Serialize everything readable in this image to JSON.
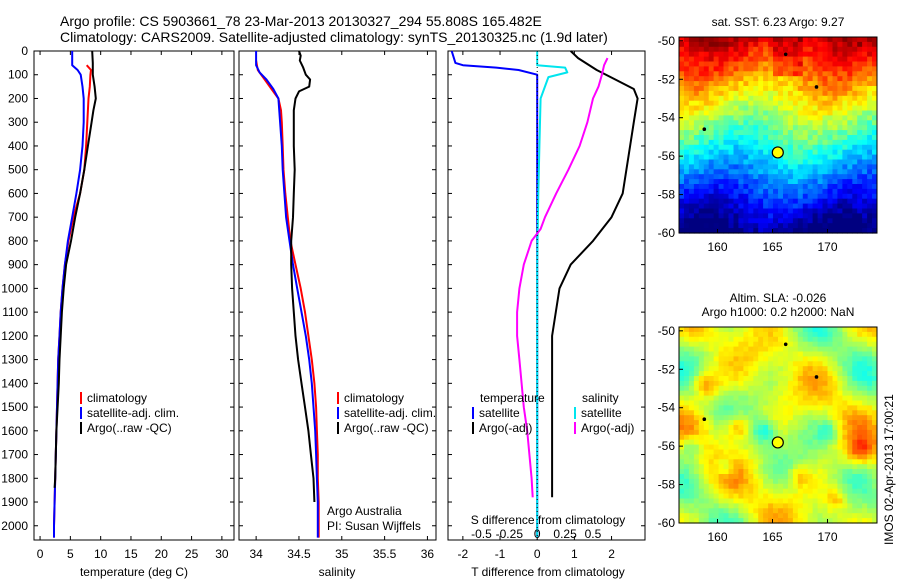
{
  "header": {
    "line1": "Argo profile: CS 5903661_78 23-Mar-2013 20130327_294 55.808S 165.482E",
    "line2": "Climatology: CARS2009. Satellite-adjusted climatology: synTS_20130325.nc (1.9d later)"
  },
  "colors": {
    "climatology": "#ff0000",
    "satellite": "#0000ff",
    "argo": "#000000",
    "salinity_satellite": "#00e5ee",
    "salinity_argo": "#ff00ff"
  },
  "depth_ticks": [
    0,
    100,
    200,
    300,
    400,
    500,
    600,
    700,
    800,
    900,
    1000,
    1100,
    1200,
    1300,
    1400,
    1500,
    1600,
    1700,
    1800,
    1900,
    2000
  ],
  "chart_data": [
    {
      "type": "line",
      "name": "temperature-profile",
      "xlabel": "temperature (deg C)",
      "xlim": [
        -1,
        32
      ],
      "ylim": [
        2060,
        0
      ],
      "xticks": [
        0,
        5,
        10,
        15,
        20,
        25,
        30
      ],
      "legend": {
        "placement": "bottom-center",
        "entries": [
          "climatology",
          "satellite-adj. clim.",
          "Argo(..raw -QC)"
        ]
      },
      "series": [
        {
          "name": "climatology",
          "color_key": "climatology",
          "points": [
            [
              7.7,
              60
            ],
            [
              8.4,
              80
            ],
            [
              8.3,
              100
            ],
            [
              8.2,
              150
            ],
            [
              8.0,
              200
            ],
            [
              7.8,
              300
            ],
            [
              7.6,
              400
            ],
            [
              7.3,
              500
            ],
            [
              6.6,
              600
            ],
            [
              5.5,
              700
            ],
            [
              4.7,
              800
            ],
            [
              4.1,
              900
            ],
            [
              3.7,
              1000
            ],
            [
              3.4,
              1100
            ],
            [
              3.2,
              1200
            ],
            [
              3.0,
              1300
            ],
            [
              2.9,
              1400
            ],
            [
              2.8,
              1500
            ],
            [
              2.7,
              1600
            ],
            [
              2.6,
              1700
            ],
            [
              2.5,
              1800
            ],
            [
              2.4,
              1900
            ],
            [
              2.3,
              2000
            ],
            [
              2.3,
              2050
            ]
          ]
        },
        {
          "name": "satellite-adj. clim.",
          "color_key": "satellite",
          "points": [
            [
              5.3,
              0
            ],
            [
              5.3,
              60
            ],
            [
              6.2,
              80
            ],
            [
              6.7,
              100
            ],
            [
              7.0,
              150
            ],
            [
              7.2,
              200
            ],
            [
              7.2,
              300
            ],
            [
              7.0,
              400
            ],
            [
              6.6,
              500
            ],
            [
              6.0,
              600
            ],
            [
              5.3,
              700
            ],
            [
              4.6,
              800
            ],
            [
              4.1,
              900
            ],
            [
              3.7,
              1000
            ],
            [
              3.4,
              1100
            ],
            [
              3.2,
              1200
            ],
            [
              3.0,
              1300
            ],
            [
              2.9,
              1400
            ],
            [
              2.8,
              1500
            ],
            [
              2.7,
              1600
            ],
            [
              2.6,
              1700
            ],
            [
              2.5,
              1800
            ],
            [
              2.4,
              1900
            ],
            [
              2.3,
              2000
            ],
            [
              2.3,
              2050
            ]
          ]
        },
        {
          "name": "Argo(..raw -QC)",
          "color_key": "argo",
          "points": [
            [
              8.6,
              0
            ],
            [
              8.7,
              50
            ],
            [
              8.7,
              100
            ],
            [
              9.0,
              150
            ],
            [
              9.2,
              200
            ],
            [
              8.8,
              250
            ],
            [
              8.5,
              300
            ],
            [
              7.9,
              400
            ],
            [
              7.3,
              500
            ],
            [
              6.6,
              600
            ],
            [
              5.8,
              700
            ],
            [
              5.1,
              800
            ],
            [
              4.3,
              900
            ],
            [
              3.9,
              1000
            ],
            [
              3.6,
              1100
            ],
            [
              3.4,
              1200
            ],
            [
              3.2,
              1300
            ],
            [
              3.1,
              1400
            ],
            [
              2.9,
              1500
            ],
            [
              2.7,
              1600
            ],
            [
              2.6,
              1700
            ],
            [
              2.5,
              1800
            ],
            [
              2.4,
              1840
            ]
          ]
        }
      ]
    },
    {
      "type": "line",
      "name": "salinity-profile",
      "xlabel": "salinity",
      "xlim": [
        33.8,
        36.1
      ],
      "ylim": [
        2060,
        0
      ],
      "xticks": [
        34,
        34.5,
        35,
        35.5,
        36
      ],
      "xtick_labels": [
        "34",
        "34.5",
        "35",
        "35.5",
        "36"
      ],
      "legend": {
        "placement": "bottom-right",
        "entries": [
          "climatology",
          "satellite-adj. clim.",
          "Argo(..raw -QC)"
        ]
      },
      "annotations": [
        "Argo Australia",
        "PI: Susan Wijffels"
      ],
      "series": [
        {
          "name": "climatology",
          "color_key": "climatology",
          "points": [
            [
              34.0,
              40
            ],
            [
              34.02,
              80
            ],
            [
              34.1,
              120
            ],
            [
              34.18,
              160
            ],
            [
              34.26,
              200
            ],
            [
              34.29,
              250
            ],
            [
              34.3,
              300
            ],
            [
              34.31,
              400
            ],
            [
              34.32,
              500
            ],
            [
              34.34,
              600
            ],
            [
              34.37,
              700
            ],
            [
              34.4,
              800
            ],
            [
              34.46,
              900
            ],
            [
              34.52,
              1000
            ],
            [
              34.57,
              1100
            ],
            [
              34.61,
              1200
            ],
            [
              34.65,
              1300
            ],
            [
              34.68,
              1400
            ],
            [
              34.7,
              1500
            ],
            [
              34.71,
              1600
            ],
            [
              34.72,
              1700
            ],
            [
              34.72,
              1800
            ],
            [
              34.73,
              1900
            ],
            [
              34.73,
              2000
            ],
            [
              34.73,
              2050
            ]
          ]
        },
        {
          "name": "satellite-adj. clim.",
          "color_key": "satellite",
          "points": [
            [
              34.0,
              0
            ],
            [
              34.0,
              60
            ],
            [
              34.04,
              90
            ],
            [
              34.12,
              120
            ],
            [
              34.2,
              160
            ],
            [
              34.26,
              200
            ],
            [
              34.28,
              300
            ],
            [
              34.3,
              400
            ],
            [
              34.31,
              500
            ],
            [
              34.33,
              600
            ],
            [
              34.35,
              700
            ],
            [
              34.39,
              800
            ],
            [
              34.43,
              900
            ],
            [
              34.48,
              1000
            ],
            [
              34.53,
              1100
            ],
            [
              34.58,
              1200
            ],
            [
              34.62,
              1300
            ],
            [
              34.65,
              1400
            ],
            [
              34.67,
              1500
            ],
            [
              34.69,
              1600
            ],
            [
              34.7,
              1700
            ],
            [
              34.71,
              1800
            ],
            [
              34.72,
              1900
            ],
            [
              34.72,
              2000
            ],
            [
              34.72,
              2050
            ]
          ]
        },
        {
          "name": "Argo(..raw -QC)",
          "color_key": "argo",
          "points": [
            [
              34.5,
              0
            ],
            [
              34.52,
              20
            ],
            [
              34.51,
              40
            ],
            [
              34.55,
              70
            ],
            [
              34.58,
              100
            ],
            [
              34.63,
              120
            ],
            [
              34.62,
              150
            ],
            [
              34.5,
              170
            ],
            [
              34.46,
              200
            ],
            [
              34.44,
              250
            ],
            [
              34.44,
              300
            ],
            [
              34.44,
              400
            ],
            [
              34.45,
              500
            ],
            [
              34.44,
              600
            ],
            [
              34.43,
              700
            ],
            [
              34.41,
              800
            ],
            [
              34.41,
              900
            ],
            [
              34.42,
              1000
            ],
            [
              34.44,
              1100
            ],
            [
              34.46,
              1200
            ],
            [
              34.49,
              1300
            ],
            [
              34.53,
              1400
            ],
            [
              34.57,
              1500
            ],
            [
              34.61,
              1600
            ],
            [
              34.64,
              1700
            ],
            [
              34.67,
              1800
            ],
            [
              34.68,
              1900
            ]
          ]
        }
      ]
    },
    {
      "type": "line",
      "name": "difference-profile",
      "xlabel": "T difference from climatology",
      "x2label": "S difference from climatology",
      "xlim": [
        -2.4,
        2.9
      ],
      "ylim": [
        2060,
        0
      ],
      "xticks": [
        -2,
        -1,
        0,
        1,
        2
      ],
      "xtick_labels": [
        "-2",
        "-1",
        "0",
        "1",
        "2"
      ],
      "s_xticks": [
        -0.5,
        -0.25,
        0,
        0.25,
        0.5
      ],
      "s_xtick_labels": [
        "-0.5",
        "-0.25",
        "0",
        "0.25",
        "0.5"
      ],
      "legend": {
        "placement": "bottom",
        "temperature_title": "temperature",
        "salinity_title": "salinity",
        "entries": [
          "satellite",
          "Argo(-adj)",
          "satellite",
          "Argo(-adj)"
        ]
      },
      "series": [
        {
          "name": "satellite",
          "group": "temperature",
          "color_key": "satellite",
          "unit": "T",
          "points": [
            [
              -2.3,
              0
            ],
            [
              -2.2,
              50
            ],
            [
              -2.0,
              60
            ],
            [
              -1.1,
              70
            ],
            [
              -0.5,
              80
            ],
            [
              0.0,
              100
            ],
            [
              0.0,
              2050
            ]
          ]
        },
        {
          "name": "Argo(-adj)",
          "group": "temperature",
          "color_key": "argo",
          "unit": "T",
          "points": [
            [
              0.9,
              0
            ],
            [
              1.1,
              30
            ],
            [
              1.6,
              80
            ],
            [
              2.1,
              120
            ],
            [
              2.6,
              160
            ],
            [
              2.7,
              200
            ],
            [
              2.6,
              300
            ],
            [
              2.5,
              400
            ],
            [
              2.4,
              500
            ],
            [
              2.3,
              600
            ],
            [
              2.0,
              700
            ],
            [
              1.5,
              800
            ],
            [
              0.9,
              900
            ],
            [
              0.6,
              1000
            ],
            [
              0.5,
              1100
            ],
            [
              0.4,
              1200
            ],
            [
              0.4,
              1300
            ],
            [
              0.4,
              1400
            ],
            [
              0.4,
              1500
            ],
            [
              0.4,
              1600
            ],
            [
              0.4,
              1700
            ],
            [
              0.4,
              1800
            ],
            [
              0.4,
              1880
            ]
          ]
        },
        {
          "name": "satellite",
          "group": "salinity",
          "color_key": "salinity_satellite",
          "unit": "S",
          "points": [
            [
              0.0,
              0
            ],
            [
              0.0,
              60
            ],
            [
              0.25,
              70
            ],
            [
              0.27,
              90
            ],
            [
              0.1,
              110
            ],
            [
              0.03,
              200
            ],
            [
              0.02,
              400
            ],
            [
              0.01,
              600
            ],
            [
              0.0,
              900
            ],
            [
              0.0,
              1200
            ],
            [
              0.0,
              1600
            ],
            [
              0.0,
              2000
            ],
            [
              0.0,
              2050
            ]
          ]
        },
        {
          "name": "Argo(-adj)",
          "group": "salinity",
          "color_key": "salinity_argo",
          "unit": "S",
          "points": [
            [
              0.63,
              30
            ],
            [
              0.6,
              60
            ],
            [
              0.58,
              100
            ],
            [
              0.55,
              150
            ],
            [
              0.5,
              200
            ],
            [
              0.45,
              300
            ],
            [
              0.38,
              400
            ],
            [
              0.28,
              500
            ],
            [
              0.17,
              600
            ],
            [
              0.07,
              700
            ],
            [
              0.03,
              750
            ],
            [
              -0.05,
              800
            ],
            [
              -0.12,
              900
            ],
            [
              -0.16,
              1000
            ],
            [
              -0.18,
              1100
            ],
            [
              -0.18,
              1200
            ],
            [
              -0.16,
              1300
            ],
            [
              -0.14,
              1400
            ],
            [
              -0.12,
              1500
            ],
            [
              -0.09,
              1600
            ],
            [
              -0.07,
              1700
            ],
            [
              -0.05,
              1800
            ],
            [
              -0.04,
              1880
            ]
          ]
        }
      ]
    },
    {
      "type": "heatmap",
      "name": "sst-map",
      "title": "sat. SST: 6.23 Argo: 9.27",
      "xlim": [
        156.5,
        174.5
      ],
      "ylim": [
        -60,
        -49.8
      ],
      "xticks": [
        160,
        165,
        170
      ],
      "yticks": [
        -50,
        -52,
        -54,
        -56,
        -58,
        -60
      ],
      "profile_location": [
        165.482,
        -55.808
      ],
      "colormap": "jet",
      "field": "sea surface temperature (warm north, cold south)"
    },
    {
      "type": "heatmap",
      "name": "sla-map",
      "title": "Altim. SLA: -0.026",
      "subtitle": "Argo h1000: 0.2 h2000: NaN",
      "xlim": [
        156.5,
        174.5
      ],
      "ylim": [
        -60,
        -49.8
      ],
      "xticks": [
        160,
        165,
        170
      ],
      "yticks": [
        -50,
        -52,
        -54,
        -56,
        -58,
        -60
      ],
      "profile_location": [
        165.482,
        -55.808
      ],
      "colormap": "jet",
      "field": "sea level anomaly (eddy field)"
    }
  ],
  "footer": {
    "side_label": "IMOS 02-Apr-2013 17:00:21"
  }
}
